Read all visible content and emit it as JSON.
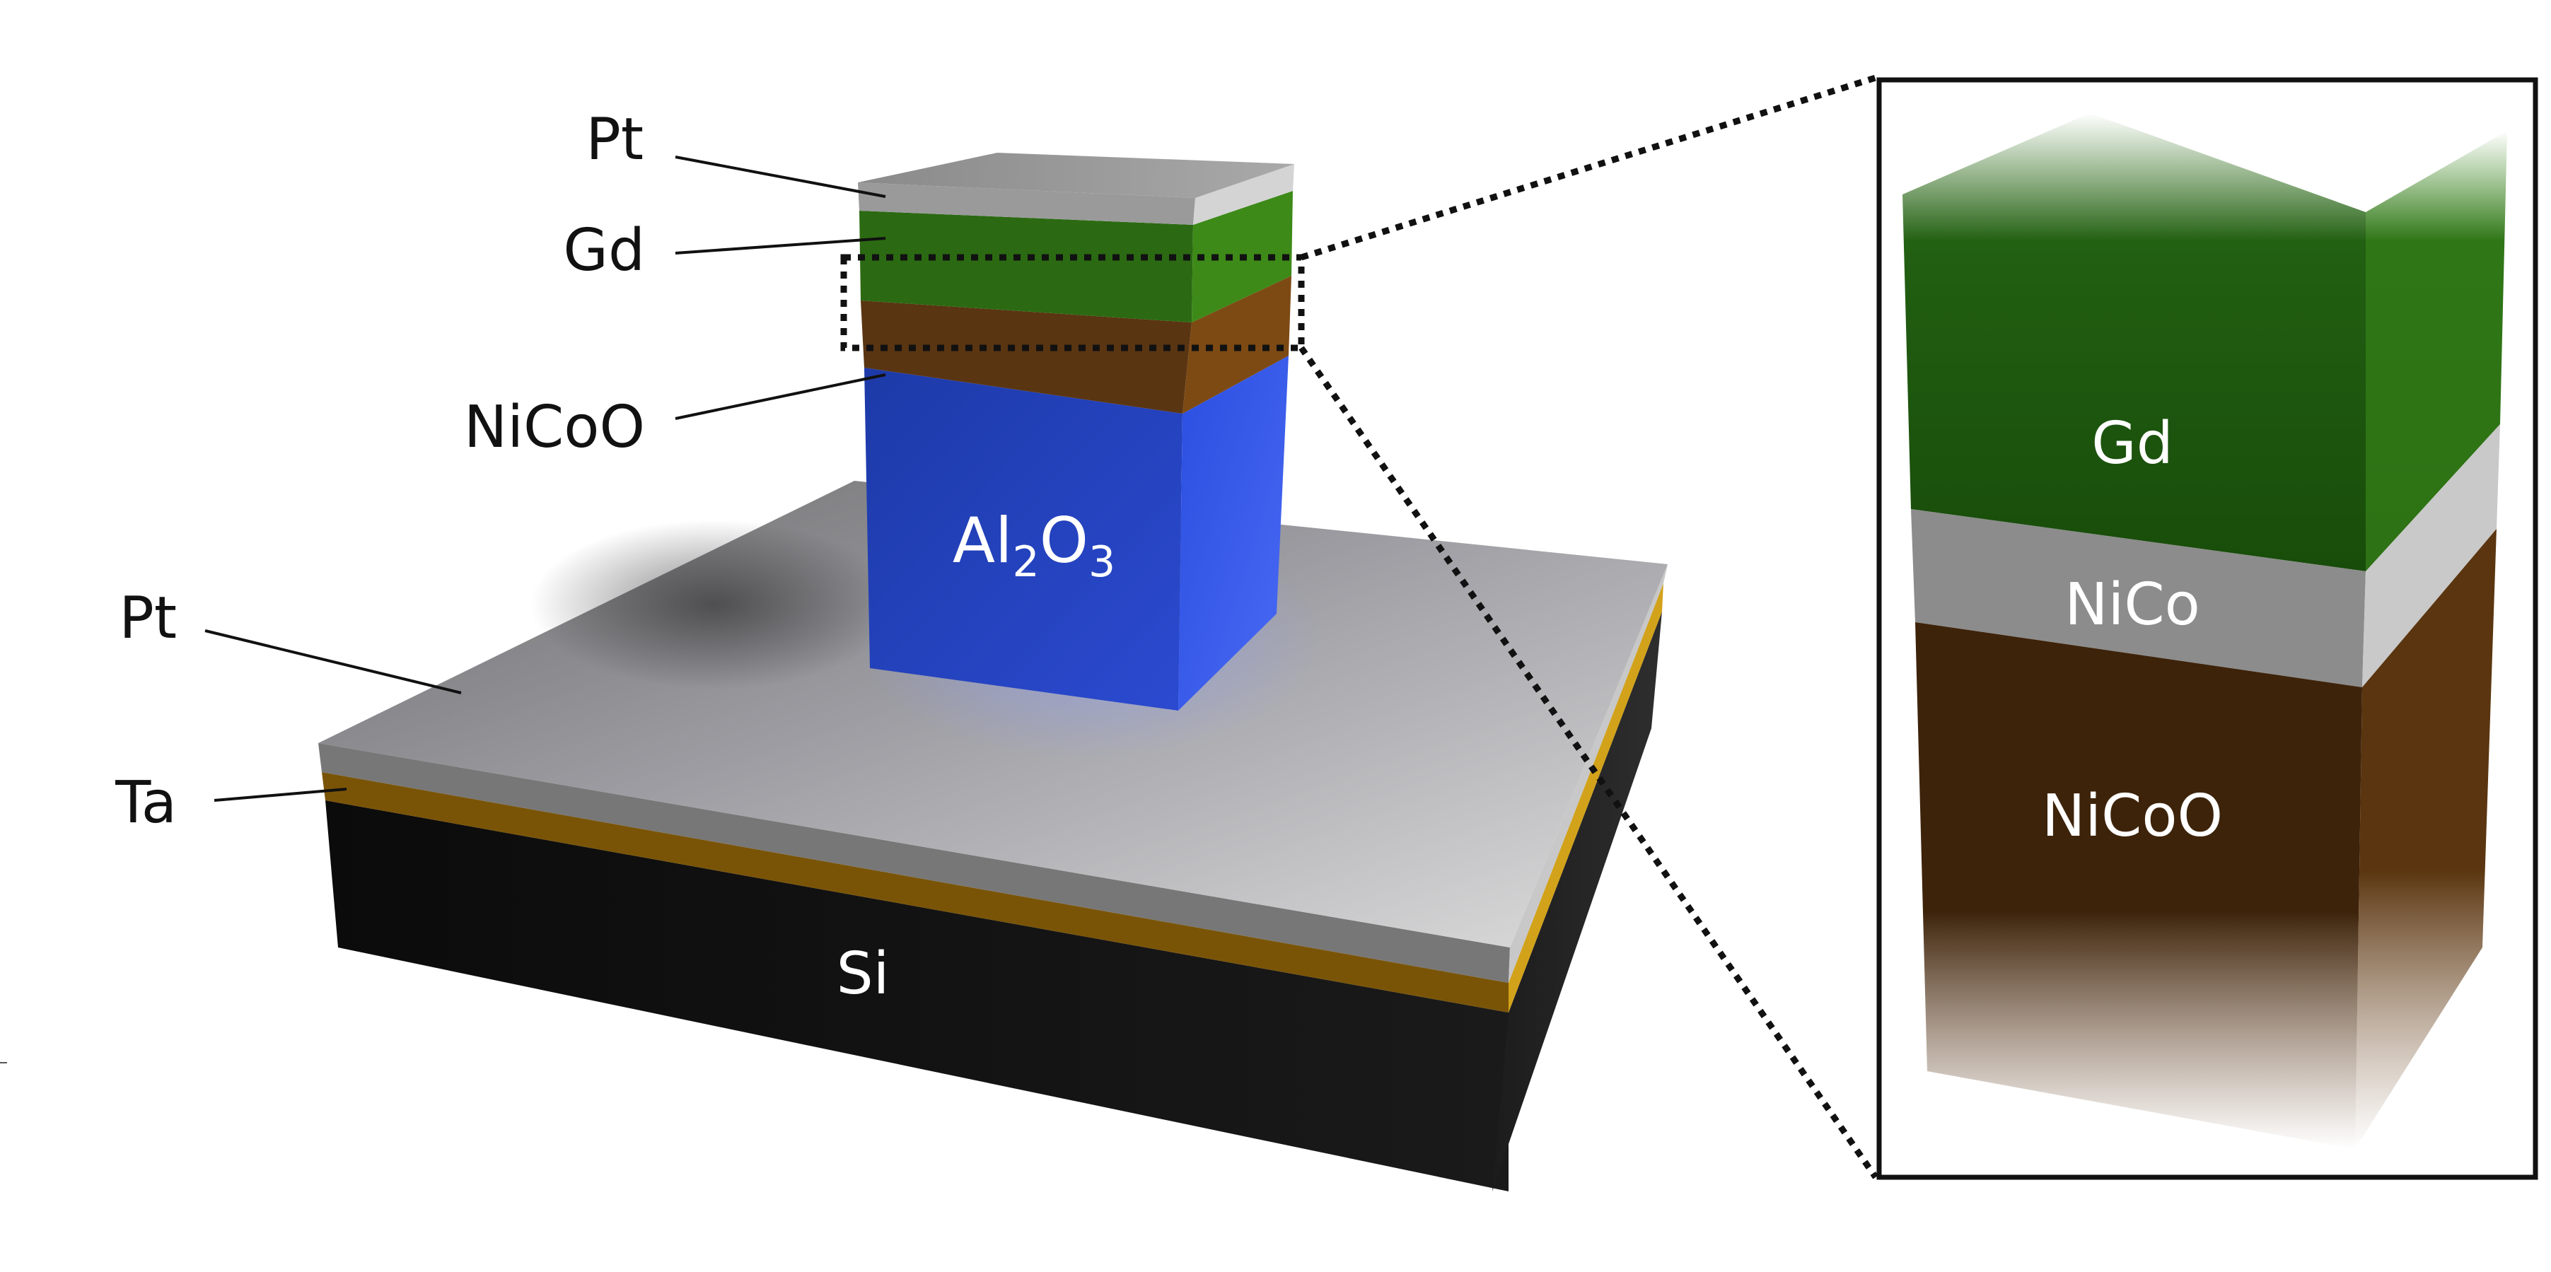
{
  "device_labels": {
    "pillar_top_pt": "Pt",
    "pillar_gd": "Gd",
    "pillar_nicoo": "NiCoO",
    "pillar_core_base": "Al",
    "pillar_core_sub2": "2",
    "pillar_core_o": "O",
    "pillar_core_sub3": "3",
    "base_pt": "Pt",
    "base_ta": "Ta",
    "substrate": "Si"
  },
  "inset_labels": {
    "gd": "Gd",
    "nico": "NiCo",
    "nicoo": "NiCoO"
  },
  "layer_colors": {
    "pt": "#9a9a9a",
    "gd": "#2b6a12",
    "nicoo": "#5a3512",
    "al2o3": "#2a46cc",
    "ta": "#7a5406",
    "si": "#141414",
    "nico_inset": "#8c8c8c"
  }
}
